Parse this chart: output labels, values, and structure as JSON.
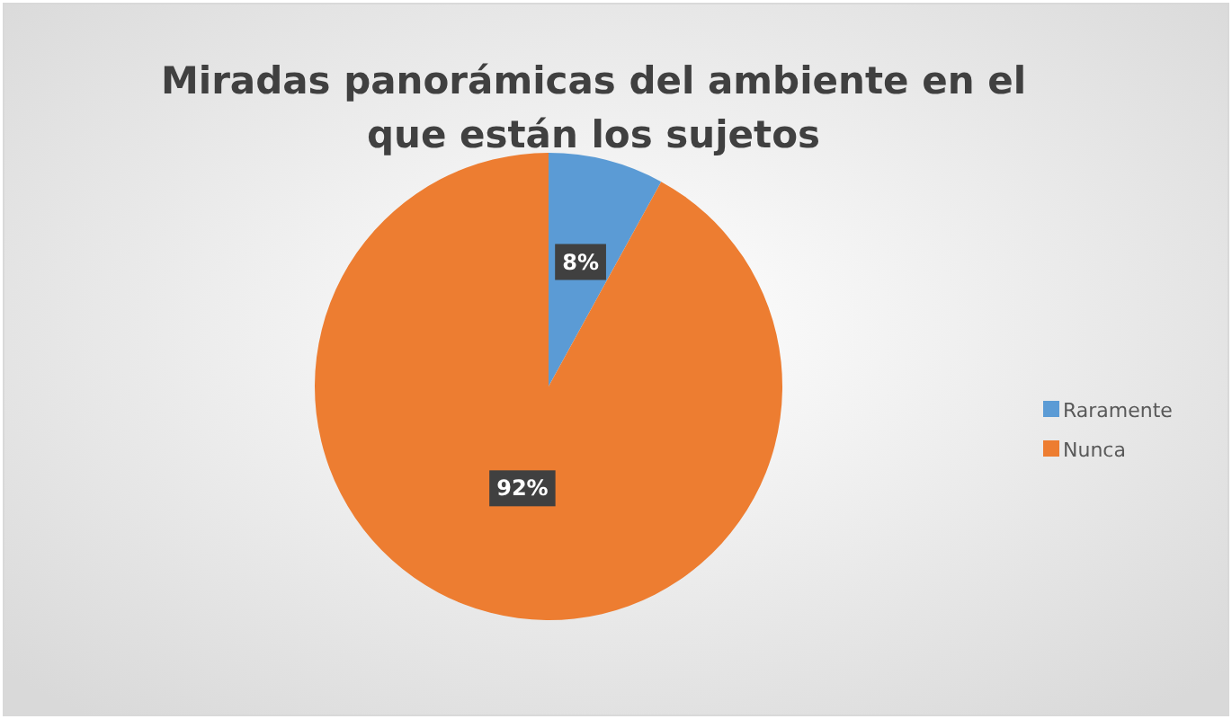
{
  "chart_data": {
    "type": "pie",
    "title": "Miradas panorámicas del ambiente en el que están los sujetos",
    "categories": [
      "Raramente",
      "Nunca"
    ],
    "values": [
      8,
      92
    ],
    "value_labels": [
      "8%",
      "92%"
    ],
    "colors": [
      "#5b9bd5",
      "#ed7d31"
    ],
    "legend": "right"
  }
}
